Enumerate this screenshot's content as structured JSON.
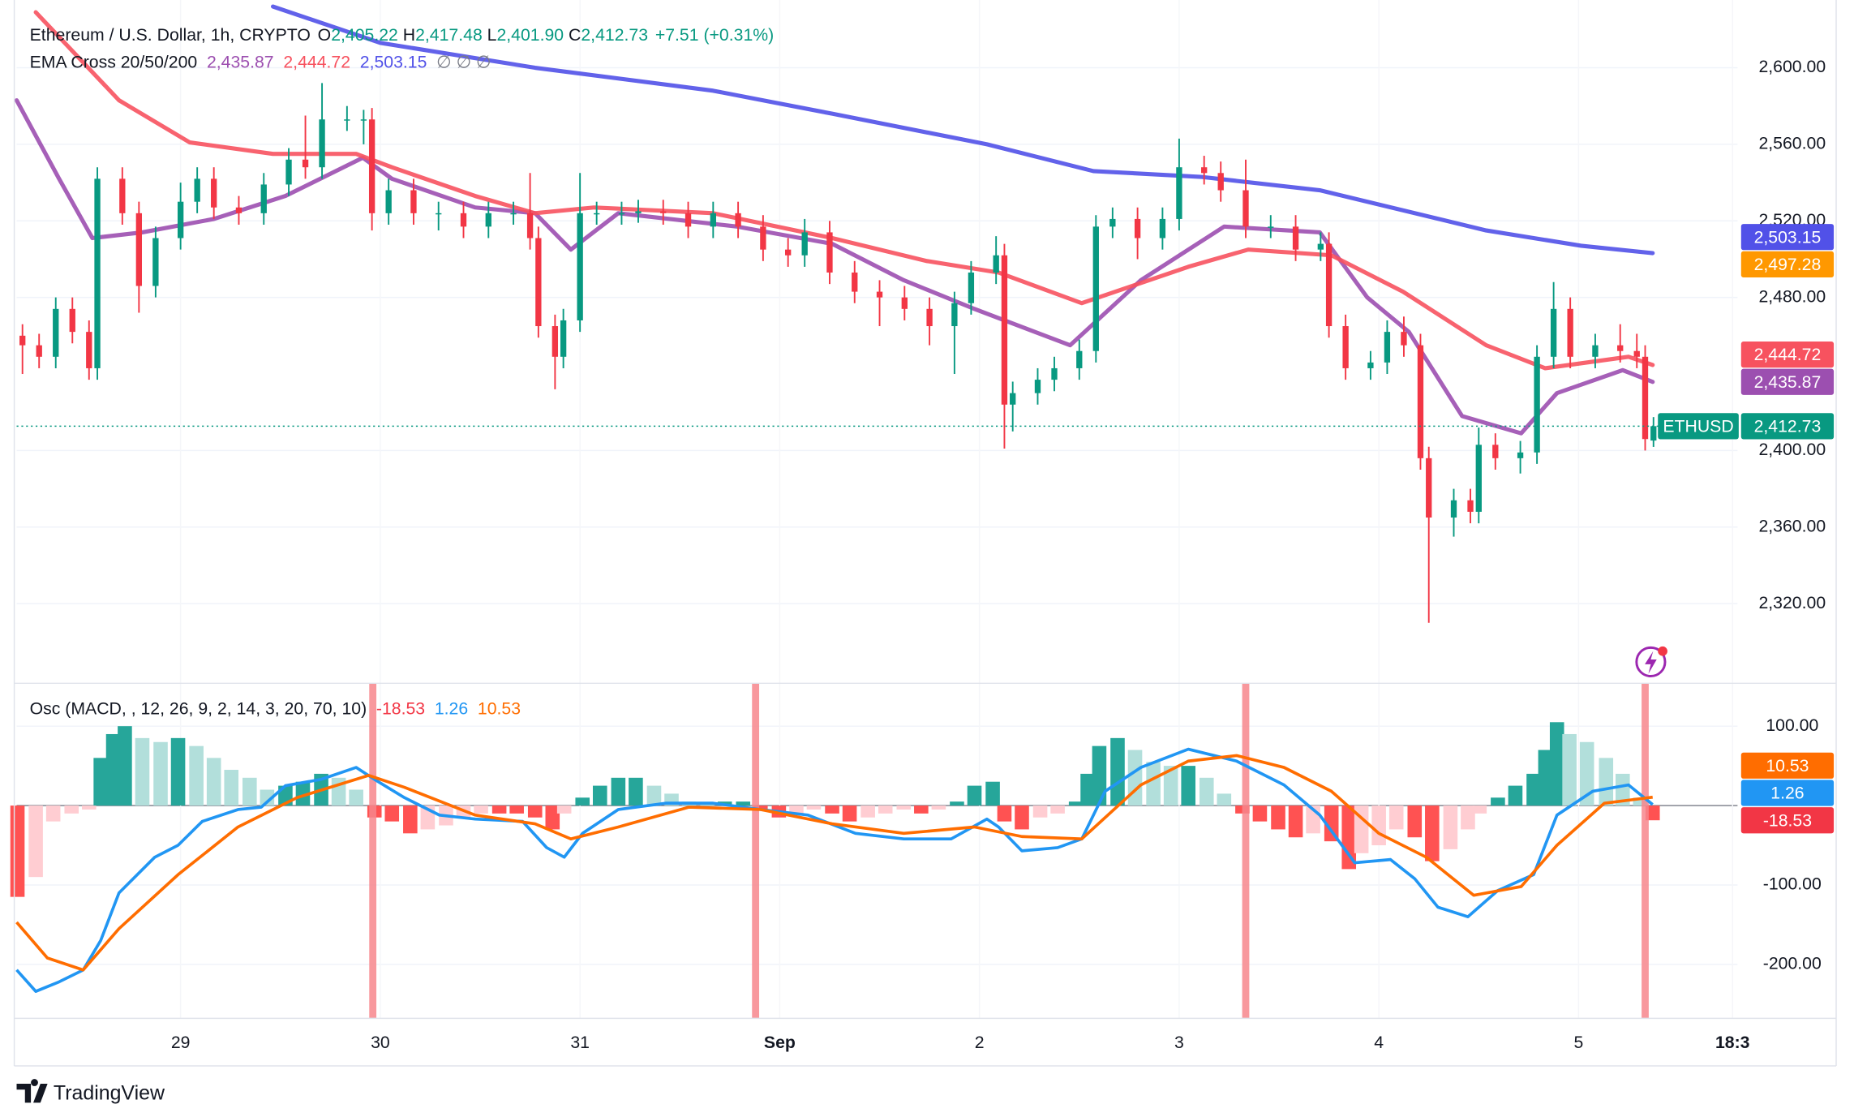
{
  "chart_data": [
    {
      "type": "candlestick",
      "title": "Ethereum / U.S. Dollar, 1h, CRYPTO",
      "ohlc_labels": [
        {
          "key": "O",
          "label": "2,405.22"
        },
        {
          "key": "H",
          "label": "2,417.48"
        },
        {
          "key": "L",
          "label": "2,401.90"
        },
        {
          "key": "C",
          "label": "2,412.73"
        }
      ],
      "change_label": "+7.51 (+0.31%)",
      "symbol": "ETHUSD",
      "up_color": "#089981",
      "down_color": "#f23645",
      "x": [
        -19,
        -17,
        -15,
        -13,
        -11,
        -10,
        -7,
        -5,
        -3,
        0,
        2,
        4,
        7,
        10,
        13,
        15,
        17,
        20,
        22,
        23,
        25,
        28,
        31,
        34,
        37,
        40,
        42,
        43,
        45,
        46,
        48,
        50,
        53,
        55,
        58,
        61,
        64,
        67,
        70,
        73,
        75,
        78,
        81,
        84,
        87,
        90,
        93,
        95,
        98,
        99,
        100,
        103,
        105,
        108,
        110,
        112,
        115,
        118,
        120,
        123,
        125,
        128,
        131,
        134,
        137,
        138,
        140,
        143,
        145,
        147,
        149,
        150,
        153,
        155,
        156,
        158,
        161,
        163,
        165,
        167,
        170,
        173,
        175,
        176,
        177
      ],
      "open": [
        2460,
        2455,
        2449,
        2474,
        2462,
        2443,
        2542,
        2524,
        2486,
        2511,
        2530,
        2542,
        2527,
        2524,
        2539,
        2552,
        2548,
        2573,
        2573,
        2573,
        2524,
        2536,
        2524,
        2524,
        2517,
        2524,
        2524,
        2511,
        2465,
        2449,
        2468,
        2524,
        2524,
        2524,
        2525,
        2524,
        2517,
        2524,
        2517,
        2505,
        2502,
        2514,
        2493,
        2483,
        2480,
        2474,
        2465,
        2477,
        2493,
        2502,
        2424,
        2430,
        2437,
        2443,
        2452,
        2517,
        2521,
        2511,
        2521,
        2548,
        2545,
        2536,
        2517,
        2517,
        2505,
        2508,
        2465,
        2443,
        2446,
        2462,
        2455,
        2396,
        2365,
        2374,
        2368,
        2403,
        2396,
        2399,
        2449,
        2474,
        2449,
        2455,
        2452,
        2449,
        2405.22
      ],
      "high": [
        2466,
        2461,
        2480,
        2480,
        2468,
        2548,
        2548,
        2530,
        2517,
        2540,
        2548,
        2548,
        2533,
        2545,
        2558,
        2575,
        2592,
        2580,
        2578,
        2579,
        2542,
        2542,
        2530,
        2530,
        2530,
        2530,
        2545,
        2517,
        2471,
        2474,
        2545,
        2530,
        2530,
        2531,
        2531,
        2530,
        2530,
        2530,
        2523,
        2511,
        2521,
        2520,
        2499,
        2489,
        2486,
        2480,
        2483,
        2499,
        2512,
        2508,
        2436,
        2443,
        2449,
        2458,
        2523,
        2527,
        2527,
        2527,
        2563,
        2554,
        2551,
        2552,
        2523,
        2523,
        2514,
        2514,
        2471,
        2452,
        2468,
        2470,
        2461,
        2402,
        2380,
        2380,
        2412,
        2409,
        2405,
        2455,
        2488,
        2480,
        2461,
        2466,
        2461,
        2455,
        2417.48
      ],
      "low": [
        2440,
        2443,
        2443,
        2456,
        2437,
        2437,
        2518,
        2472,
        2480,
        2505,
        2524,
        2521,
        2518,
        2518,
        2533,
        2542,
        2542,
        2567,
        2560,
        2515,
        2518,
        2518,
        2515,
        2511,
        2511,
        2518,
        2505,
        2459,
        2432,
        2443,
        2462,
        2518,
        2518,
        2519,
        2518,
        2511,
        2511,
        2511,
        2499,
        2496,
        2496,
        2487,
        2477,
        2465,
        2468,
        2455,
        2440,
        2471,
        2487,
        2401,
        2410,
        2424,
        2431,
        2437,
        2446,
        2511,
        2500,
        2505,
        2515,
        2539,
        2530,
        2511,
        2511,
        2499,
        2499,
        2459,
        2437,
        2437,
        2440,
        2449,
        2390,
        2310,
        2355,
        2362,
        2362,
        2390,
        2388,
        2393,
        2443,
        2443,
        2443,
        2446,
        2443,
        2400,
        2401.9
      ],
      "close": [
        2455,
        2449,
        2474,
        2462,
        2443,
        2542,
        2524,
        2486,
        2511,
        2530,
        2542,
        2527,
        2524,
        2539,
        2552,
        2548,
        2573,
        2573,
        2573,
        2524,
        2536,
        2524,
        2524,
        2517,
        2524,
        2524,
        2511,
        2465,
        2449,
        2468,
        2524,
        2524,
        2524,
        2525,
        2524,
        2517,
        2524,
        2517,
        2505,
        2502,
        2514,
        2493,
        2483,
        2480,
        2474,
        2465,
        2477,
        2493,
        2502,
        2424,
        2430,
        2437,
        2443,
        2452,
        2517,
        2521,
        2511,
        2521,
        2548,
        2545,
        2536,
        2517,
        2517,
        2505,
        2508,
        2465,
        2443,
        2446,
        2462,
        2455,
        2396,
        2365,
        2374,
        2368,
        2403,
        2396,
        2399,
        2449,
        2474,
        2449,
        2455,
        2452,
        2449,
        2406,
        2412.73
      ],
      "last_label": "2,412.73",
      "xlim": [
        -19.7,
        187.1
      ],
      "ylim": [
        2278.4,
        2635.4
      ],
      "yticks": [
        {
          "value": 2600,
          "label": "2,600.00"
        },
        {
          "value": 2560,
          "label": "2,560.00"
        },
        {
          "value": 2520,
          "label": "2,520.00"
        },
        {
          "value": 2480,
          "label": "2,480.00"
        },
        {
          "value": 2400,
          "label": "2,400.00"
        },
        {
          "value": 2360,
          "label": "2,360.00"
        },
        {
          "value": 2320,
          "label": "2,320.00"
        }
      ],
      "grid": true,
      "indicator": "EMA Cross 20/50/200",
      "indicator_flags": "∅  ∅  ∅",
      "series": [
        {
          "color": "#9c4fb0",
          "last_label": "2,435.87",
          "x": [
            -19.7,
            -14.6,
            -10.6,
            -4.6,
            4,
            12.6,
            21.9,
            25.4,
            35.4,
            42.6,
            46.9,
            52.6,
            66.9,
            78.3,
            86.9,
            95.4,
            106.9,
            115.4,
            125.4,
            136.9,
            142.6,
            147.6,
            154,
            161.1,
            165.4,
            173.3,
            176.9
          ],
          "values": [
            2583,
            2542,
            2511,
            2514,
            2521,
            2533,
            2553,
            2542,
            2527,
            2524,
            2505,
            2524,
            2517,
            2508,
            2489,
            2474,
            2455,
            2489,
            2517,
            2514,
            2480,
            2462,
            2418,
            2409,
            2430,
            2442,
            2435.87
          ]
        },
        {
          "color": "#f7525f",
          "last_label": "2,444.72",
          "x": [
            -17.4,
            -7.4,
            1.1,
            11.1,
            21.1,
            25.4,
            35.4,
            42.6,
            49.7,
            64,
            78.3,
            89.7,
            98.3,
            108.3,
            121.1,
            128.3,
            138.3,
            146.9,
            156.9,
            164,
            174,
            176.9
          ],
          "values": [
            2629,
            2583,
            2561,
            2555,
            2555,
            2548,
            2533,
            2524,
            2527,
            2524,
            2511,
            2499,
            2493,
            2477,
            2496,
            2505,
            2502,
            2483,
            2455,
            2443,
            2449,
            2444.72
          ]
        },
        {
          "color": "#5151e8",
          "last_label": "2,503.15",
          "x": [
            11.1,
            24,
            42.6,
            64,
            78.3,
            96.9,
            109.7,
            122.6,
            136.9,
            156.9,
            168.3,
            176.9
          ],
          "values": [
            2632,
            2613,
            2600,
            2588,
            2576,
            2560,
            2546,
            2543,
            2536,
            2515,
            2507,
            2503.15
          ]
        }
      ],
      "extra_tags": [
        {
          "value": 2497.28,
          "label": "2,497.28",
          "color": "#ff9800"
        }
      ]
    },
    {
      "type": "macd",
      "title": "Osc (MACD, , 12, 26, 9, 2, 14, 3, 20, 70, 10)",
      "histogram": {
        "x": [
          -19.6,
          -17.4,
          -15.3,
          -13.1,
          -11,
          -9.6,
          -8.1,
          -6.7,
          -4.6,
          -2.4,
          -0.3,
          1.9,
          4,
          6.1,
          8.3,
          10.4,
          12.6,
          14.7,
          16.9,
          19,
          21.1,
          23.3,
          25.4,
          27.6,
          29.7,
          31.9,
          34,
          36.1,
          38.3,
          40.4,
          42.6,
          44.7,
          46.1,
          48.3,
          50.4,
          52.6,
          54.7,
          56.9,
          59,
          61.1,
          63.3,
          65.4,
          67.6,
          69.7,
          71.9,
          74,
          76.1,
          78.3,
          80.4,
          82.6,
          84.7,
          86.9,
          89,
          91.1,
          93.3,
          95.4,
          97.6,
          99,
          101.1,
          103.3,
          105.4,
          107.6,
          109,
          110.4,
          112.6,
          114.7,
          116.9,
          119,
          121.1,
          123.3,
          125.4,
          127.6,
          129.7,
          131.9,
          134,
          136.1,
          138.3,
          140.4,
          141.9,
          144,
          146.1,
          148.3,
          150.4,
          152.6,
          154.7,
          156.1,
          158.3,
          160.4,
          162.6,
          164,
          165.4,
          166.9,
          169,
          171.3,
          173.3,
          175.4,
          176.9
        ],
        "values": [
          -115,
          -90,
          -20,
          -10,
          -5,
          60,
          90,
          100,
          85,
          80,
          85,
          75,
          60,
          45,
          35,
          20,
          25,
          30,
          40,
          35,
          20,
          -15,
          -20,
          -35,
          -30,
          -25,
          -15,
          -10,
          -10,
          -10,
          -15,
          -30,
          -10,
          10,
          25,
          35,
          35,
          25,
          15,
          5,
          3,
          5,
          5,
          -5,
          -15,
          -10,
          -5,
          -10,
          -20,
          -15,
          -10,
          -5,
          -10,
          -5,
          5,
          25,
          30,
          -20,
          -30,
          -15,
          -10,
          5,
          40,
          75,
          85,
          70,
          55,
          50,
          50,
          35,
          15,
          -10,
          -20,
          -30,
          -40,
          -35,
          -45,
          -80,
          -60,
          -50,
          -30,
          -40,
          -70,
          -55,
          -30,
          -10,
          10,
          25,
          40,
          70,
          105,
          90,
          80,
          60,
          40,
          10,
          -18.53
        ],
        "last_label": "-18.53",
        "color": "#f23645",
        "colors": {
          "rise_pos": "#26a69a",
          "fall_pos": "#b2dfdb",
          "fall_neg": "#ff5252",
          "rise_neg": "#ffcdd2"
        }
      },
      "series": [
        {
          "color": "#2196f3",
          "last_label": "1.26",
          "x": [
            -19.7,
            -17.4,
            -14.6,
            -11.7,
            -9.6,
            -7.4,
            -3.1,
            -0.3,
            2.6,
            6.9,
            9.7,
            12.6,
            16.9,
            21.1,
            23.3,
            26.9,
            31.1,
            35.4,
            41.1,
            44,
            46.1,
            48.3,
            52.6,
            58.3,
            64,
            69.7,
            75.4,
            81.1,
            86.9,
            92.6,
            96.9,
            98.3,
            101.1,
            105.4,
            108.3,
            111.1,
            115.4,
            121.1,
            126.9,
            132.6,
            136.9,
            141.1,
            145.4,
            148.3,
            151.1,
            154.7,
            158.3,
            162.6,
            165.4,
            169.7,
            174,
            176.9
          ],
          "values": [
            -207,
            -234,
            -222,
            -207,
            -170,
            -110,
            -65,
            -50,
            -20,
            -5,
            -2,
            25,
            33,
            48,
            33,
            10,
            -12,
            -17,
            -20,
            -53,
            -65,
            -35,
            -5,
            3,
            3,
            -5,
            -12,
            -35,
            -42,
            -42,
            -17,
            -27,
            -57,
            -53,
            -42,
            18,
            48,
            71,
            56,
            26,
            -12,
            -72,
            -68,
            -92,
            -128,
            -140,
            -107,
            -87,
            -12,
            18,
            26,
            1.26
          ]
        },
        {
          "color": "#ff6d00",
          "last_label": "10.53",
          "x": [
            -19.7,
            -16,
            -11.7,
            -7.4,
            -0.3,
            6.9,
            14,
            22.6,
            26.9,
            35.4,
            42.6,
            46.9,
            52.6,
            61.1,
            69.7,
            78.3,
            86.9,
            95.4,
            101.1,
            108.3,
            115.4,
            121.1,
            126.9,
            132.6,
            138.3,
            144,
            149.7,
            155.4,
            161.1,
            165.4,
            171.1,
            176.9
          ],
          "values": [
            -147,
            -192,
            -207,
            -155,
            -87,
            -27,
            10,
            38,
            23,
            -12,
            -23,
            -42,
            -27,
            -2,
            -5,
            -23,
            -35,
            -27,
            -39,
            -42,
            26,
            56,
            63,
            48,
            18,
            -35,
            -65,
            -113,
            -102,
            -50,
            3,
            10.53
          ]
        }
      ],
      "alerts": {
        "x": [
          23.1,
          69.1,
          128,
          176
        ],
        "color": "#f7868c"
      },
      "xlim": [
        -19.7,
        187.1
      ],
      "ylim": [
        -268,
        154
      ],
      "yticks": [
        {
          "value": 100,
          "label": "100.00"
        },
        {
          "value": -100,
          "label": "-100.00"
        },
        {
          "value": -200,
          "label": "-200.00"
        }
      ],
      "xticks": [
        {
          "value": 0,
          "label": "29"
        },
        {
          "value": 24,
          "label": "30"
        },
        {
          "value": 48,
          "label": "31"
        },
        {
          "value": 72,
          "label": "Sep"
        },
        {
          "value": 96,
          "label": "2"
        },
        {
          "value": 120,
          "label": "3"
        },
        {
          "value": 144,
          "label": "4"
        },
        {
          "value": 168,
          "label": "5"
        },
        {
          "value": 186.5,
          "label": "18:3"
        }
      ]
    }
  ],
  "footer": {
    "brand": "TradingView"
  }
}
